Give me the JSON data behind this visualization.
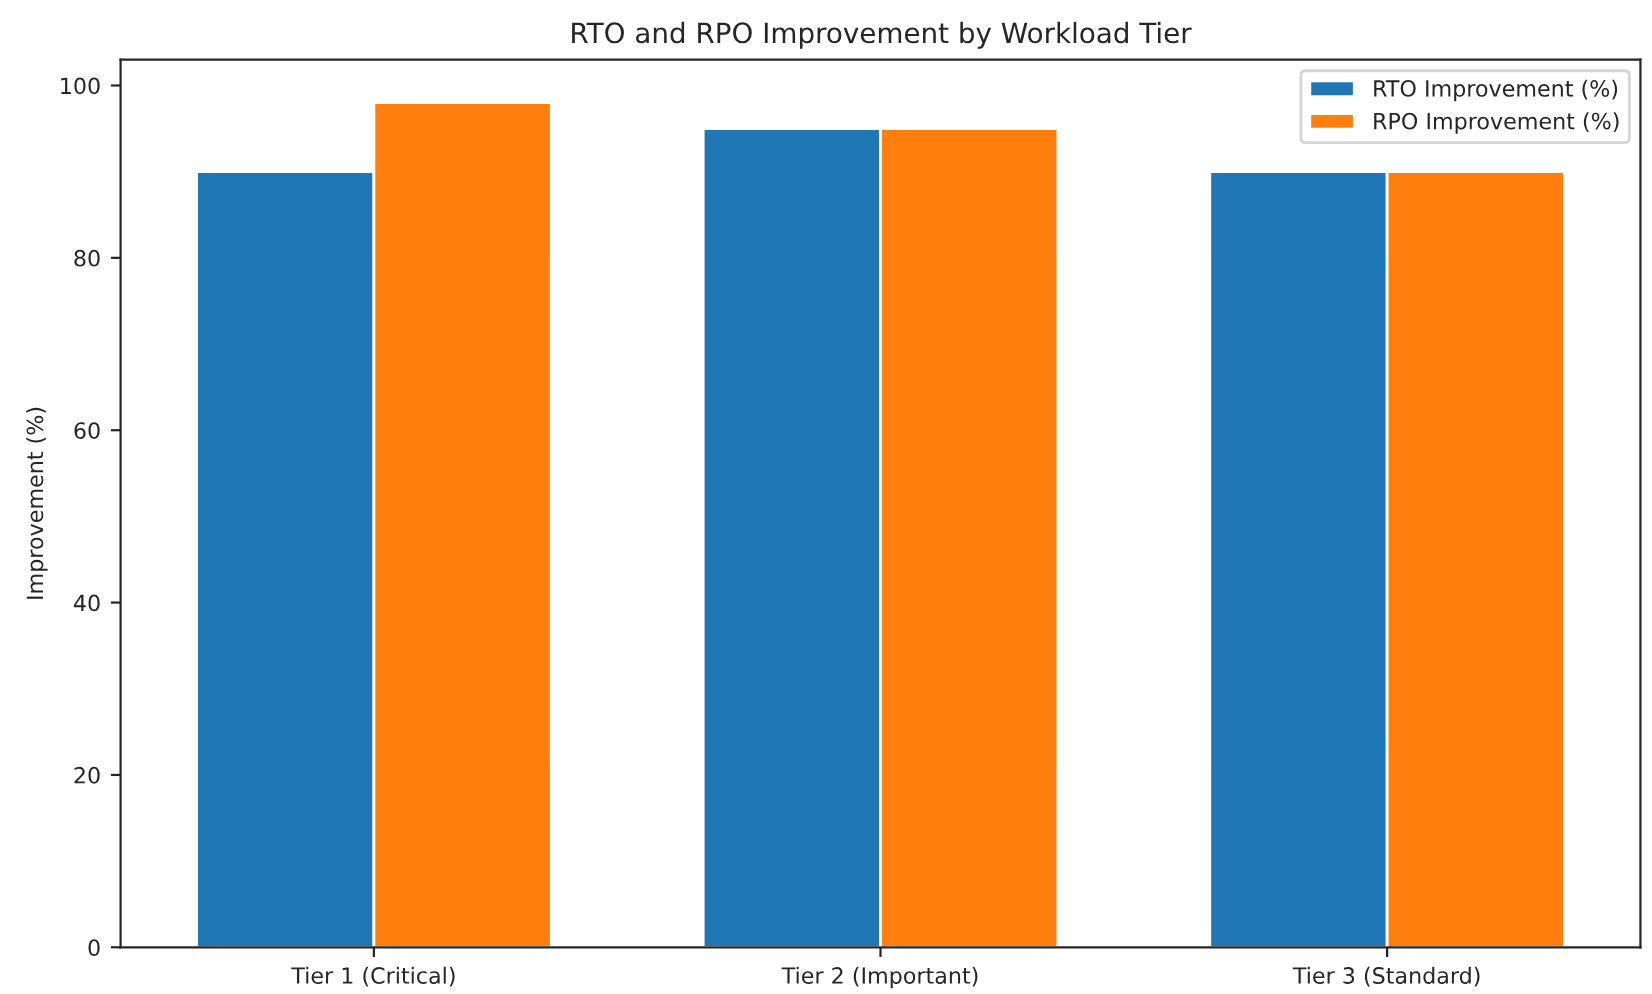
{
  "chart_data": {
    "type": "bar",
    "title": "RTO and RPO Improvement by Workload Tier",
    "ylabel": "Improvement (%)",
    "categories": [
      "Tier 1 (Critical)",
      "Tier 2 (Important)",
      "Tier 3 (Standard)"
    ],
    "series": [
      {
        "name": "RTO Improvement (%)",
        "color": "#1f77b4",
        "values": [
          90,
          95,
          90
        ]
      },
      {
        "name": "RPO Improvement (%)",
        "color": "#ff7f0e",
        "values": [
          98,
          95,
          90
        ]
      }
    ],
    "ylim": [
      0,
      103
    ],
    "yticks": [
      0,
      20,
      40,
      60,
      80,
      100
    ],
    "grid": false,
    "legend": "top right"
  }
}
